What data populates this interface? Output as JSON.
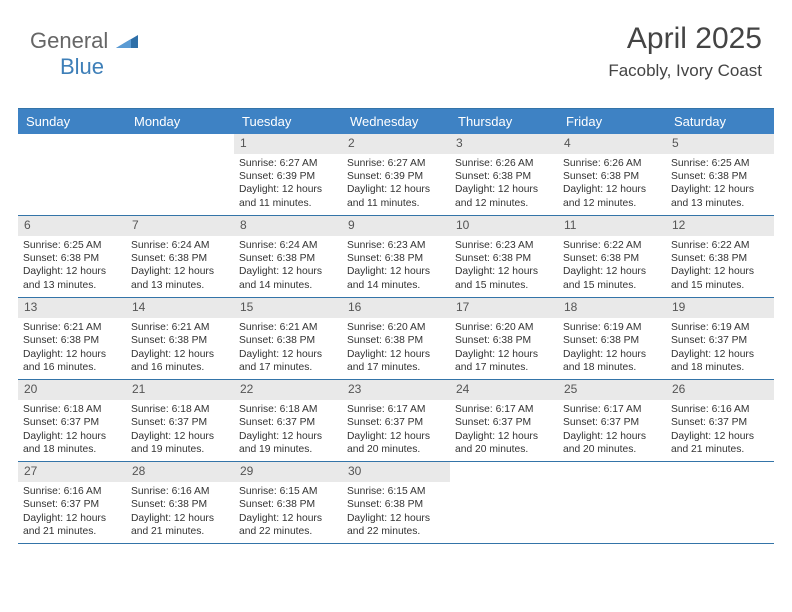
{
  "brand": {
    "general": "General",
    "blue": "Blue"
  },
  "title": "April 2025",
  "location": "Facobly, Ivory Coast",
  "colors": {
    "header_bg": "#3e82c4",
    "header_text": "#ffffff",
    "rule": "#3474a8",
    "dnum_bg": "#e9e9e9",
    "body_text": "#333333"
  },
  "day_headers": [
    "Sunday",
    "Monday",
    "Tuesday",
    "Wednesday",
    "Thursday",
    "Friday",
    "Saturday"
  ],
  "weeks": [
    [
      null,
      null,
      {
        "n": "1",
        "sr": "Sunrise: 6:27 AM",
        "ss": "Sunset: 6:39 PM",
        "dl": "Daylight: 12 hours and 11 minutes."
      },
      {
        "n": "2",
        "sr": "Sunrise: 6:27 AM",
        "ss": "Sunset: 6:39 PM",
        "dl": "Daylight: 12 hours and 11 minutes."
      },
      {
        "n": "3",
        "sr": "Sunrise: 6:26 AM",
        "ss": "Sunset: 6:38 PM",
        "dl": "Daylight: 12 hours and 12 minutes."
      },
      {
        "n": "4",
        "sr": "Sunrise: 6:26 AM",
        "ss": "Sunset: 6:38 PM",
        "dl": "Daylight: 12 hours and 12 minutes."
      },
      {
        "n": "5",
        "sr": "Sunrise: 6:25 AM",
        "ss": "Sunset: 6:38 PM",
        "dl": "Daylight: 12 hours and 13 minutes."
      }
    ],
    [
      {
        "n": "6",
        "sr": "Sunrise: 6:25 AM",
        "ss": "Sunset: 6:38 PM",
        "dl": "Daylight: 12 hours and 13 minutes."
      },
      {
        "n": "7",
        "sr": "Sunrise: 6:24 AM",
        "ss": "Sunset: 6:38 PM",
        "dl": "Daylight: 12 hours and 13 minutes."
      },
      {
        "n": "8",
        "sr": "Sunrise: 6:24 AM",
        "ss": "Sunset: 6:38 PM",
        "dl": "Daylight: 12 hours and 14 minutes."
      },
      {
        "n": "9",
        "sr": "Sunrise: 6:23 AM",
        "ss": "Sunset: 6:38 PM",
        "dl": "Daylight: 12 hours and 14 minutes."
      },
      {
        "n": "10",
        "sr": "Sunrise: 6:23 AM",
        "ss": "Sunset: 6:38 PM",
        "dl": "Daylight: 12 hours and 15 minutes."
      },
      {
        "n": "11",
        "sr": "Sunrise: 6:22 AM",
        "ss": "Sunset: 6:38 PM",
        "dl": "Daylight: 12 hours and 15 minutes."
      },
      {
        "n": "12",
        "sr": "Sunrise: 6:22 AM",
        "ss": "Sunset: 6:38 PM",
        "dl": "Daylight: 12 hours and 15 minutes."
      }
    ],
    [
      {
        "n": "13",
        "sr": "Sunrise: 6:21 AM",
        "ss": "Sunset: 6:38 PM",
        "dl": "Daylight: 12 hours and 16 minutes."
      },
      {
        "n": "14",
        "sr": "Sunrise: 6:21 AM",
        "ss": "Sunset: 6:38 PM",
        "dl": "Daylight: 12 hours and 16 minutes."
      },
      {
        "n": "15",
        "sr": "Sunrise: 6:21 AM",
        "ss": "Sunset: 6:38 PM",
        "dl": "Daylight: 12 hours and 17 minutes."
      },
      {
        "n": "16",
        "sr": "Sunrise: 6:20 AM",
        "ss": "Sunset: 6:38 PM",
        "dl": "Daylight: 12 hours and 17 minutes."
      },
      {
        "n": "17",
        "sr": "Sunrise: 6:20 AM",
        "ss": "Sunset: 6:38 PM",
        "dl": "Daylight: 12 hours and 17 minutes."
      },
      {
        "n": "18",
        "sr": "Sunrise: 6:19 AM",
        "ss": "Sunset: 6:38 PM",
        "dl": "Daylight: 12 hours and 18 minutes."
      },
      {
        "n": "19",
        "sr": "Sunrise: 6:19 AM",
        "ss": "Sunset: 6:37 PM",
        "dl": "Daylight: 12 hours and 18 minutes."
      }
    ],
    [
      {
        "n": "20",
        "sr": "Sunrise: 6:18 AM",
        "ss": "Sunset: 6:37 PM",
        "dl": "Daylight: 12 hours and 18 minutes."
      },
      {
        "n": "21",
        "sr": "Sunrise: 6:18 AM",
        "ss": "Sunset: 6:37 PM",
        "dl": "Daylight: 12 hours and 19 minutes."
      },
      {
        "n": "22",
        "sr": "Sunrise: 6:18 AM",
        "ss": "Sunset: 6:37 PM",
        "dl": "Daylight: 12 hours and 19 minutes."
      },
      {
        "n": "23",
        "sr": "Sunrise: 6:17 AM",
        "ss": "Sunset: 6:37 PM",
        "dl": "Daylight: 12 hours and 20 minutes."
      },
      {
        "n": "24",
        "sr": "Sunrise: 6:17 AM",
        "ss": "Sunset: 6:37 PM",
        "dl": "Daylight: 12 hours and 20 minutes."
      },
      {
        "n": "25",
        "sr": "Sunrise: 6:17 AM",
        "ss": "Sunset: 6:37 PM",
        "dl": "Daylight: 12 hours and 20 minutes."
      },
      {
        "n": "26",
        "sr": "Sunrise: 6:16 AM",
        "ss": "Sunset: 6:37 PM",
        "dl": "Daylight: 12 hours and 21 minutes."
      }
    ],
    [
      {
        "n": "27",
        "sr": "Sunrise: 6:16 AM",
        "ss": "Sunset: 6:37 PM",
        "dl": "Daylight: 12 hours and 21 minutes."
      },
      {
        "n": "28",
        "sr": "Sunrise: 6:16 AM",
        "ss": "Sunset: 6:38 PM",
        "dl": "Daylight: 12 hours and 21 minutes."
      },
      {
        "n": "29",
        "sr": "Sunrise: 6:15 AM",
        "ss": "Sunset: 6:38 PM",
        "dl": "Daylight: 12 hours and 22 minutes."
      },
      {
        "n": "30",
        "sr": "Sunrise: 6:15 AM",
        "ss": "Sunset: 6:38 PM",
        "dl": "Daylight: 12 hours and 22 minutes."
      },
      null,
      null,
      null
    ]
  ]
}
